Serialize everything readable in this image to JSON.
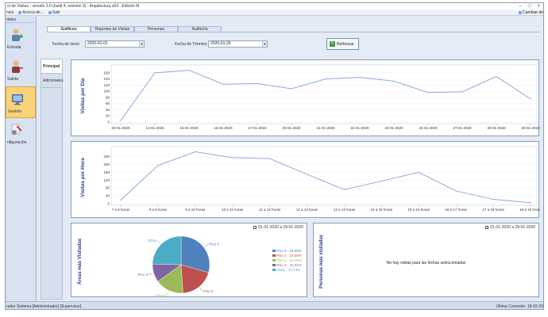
{
  "window": {
    "title": "ol de Visitas - versión 3.0 (build 4, revisión 9) - Arquitectura x64 - Edición M"
  },
  "menu": {
    "items": [
      "ncia",
      "Acerca de...",
      "Salir"
    ],
    "right": "Cambiar de"
  },
  "sidebar": {
    "header": "dulos",
    "items": [
      {
        "label": "Entrada"
      },
      {
        "label": "Salida"
      },
      {
        "label": "Gestión"
      },
      {
        "label": "nfiguración"
      }
    ]
  },
  "tabs": [
    "Gráficos",
    "Reportes de Visitas",
    "Personas",
    "Auditoría"
  ],
  "filters": {
    "start_label": "Fecha de Inicio",
    "start_value": "2020-01-01",
    "end_label": "Fecha de Término",
    "end_value": "2020-01-29",
    "refresh_label": "Refrescar"
  },
  "vtabs": [
    "Principal",
    "Adicionales"
  ],
  "panels": {
    "pie_date": "01-01-2020 a 29-01-2020",
    "persons_date": "01-01-2020 a 29-01-2020",
    "no_visits": "No hay visitas para las fechas seleccionadas"
  },
  "colors": {
    "accent": "#2b3a8a",
    "line": "#8fa9dd"
  },
  "chart_data": [
    {
      "type": "line",
      "ylabel": "Visitas por Día",
      "categories": [
        "09-01-2020",
        "14-01-2020",
        "15-01-2020",
        "16-01-2020",
        "17-01-2020",
        "20-01-2020",
        "21-01-2020",
        "22-01-2020",
        "23-01-2020",
        "24-01-2020",
        "27-01-2020",
        "28-01-2020",
        "29-01-2020"
      ],
      "values": [
        5,
        160,
        168,
        123,
        125,
        108,
        140,
        145,
        133,
        96,
        98,
        148,
        75
      ],
      "yticks": [
        0,
        20,
        40,
        60,
        80,
        100,
        120,
        140,
        160
      ],
      "ylim": [
        0,
        175
      ]
    },
    {
      "type": "line",
      "ylabel": "Visitas por Hora",
      "categories": [
        "7 a 8 horas",
        "8 a 9 horas",
        "9 a 10 horas",
        "10 a 11 horas",
        "11 a 12 horas",
        "12 a 13 horas",
        "13 a 14 horas",
        "14 a 15 horas",
        "15 a 16 horas",
        "16 a 17 horas",
        "17 a 18 horas",
        "18 a 19 horas"
      ],
      "values": [
        18,
        195,
        265,
        235,
        230,
        150,
        72,
        115,
        160,
        65,
        22,
        5
      ],
      "yticks": [
        0,
        40,
        80,
        120,
        160,
        200,
        240
      ],
      "ylim": [
        0,
        275
      ]
    },
    {
      "type": "pie",
      "ylabel": "Áreas más Visitadas",
      "slices": [
        {
          "name": "Piso 5",
          "value": 29.58,
          "color": "#4f81bd",
          "label": "Piso 5"
        },
        {
          "name": "Piso 2",
          "value": 19.55,
          "color": "#c0504d",
          "label": "Piso 2"
        },
        {
          "name": "Piso 6",
          "value": 16.19,
          "color": "#9bbb59",
          "label": "Piso 6"
        },
        {
          "name": "Piso 3",
          "value": 10.31,
          "color": "#8064a2",
          "label": "Piso 3"
        },
        {
          "name": "Otras",
          "value": 24.74,
          "color": "#4bacc6",
          "label": "Otras"
        }
      ],
      "legend": [
        "Piso 5 - 29,58%",
        "Piso 2 - 19,55%",
        "Piso 6 - 16,19%",
        "Piso 3 - 10,31%",
        "Otras - 24,74%"
      ]
    },
    {
      "type": "pie",
      "ylabel": "Personas más visitadas",
      "slices": []
    }
  ]
}
